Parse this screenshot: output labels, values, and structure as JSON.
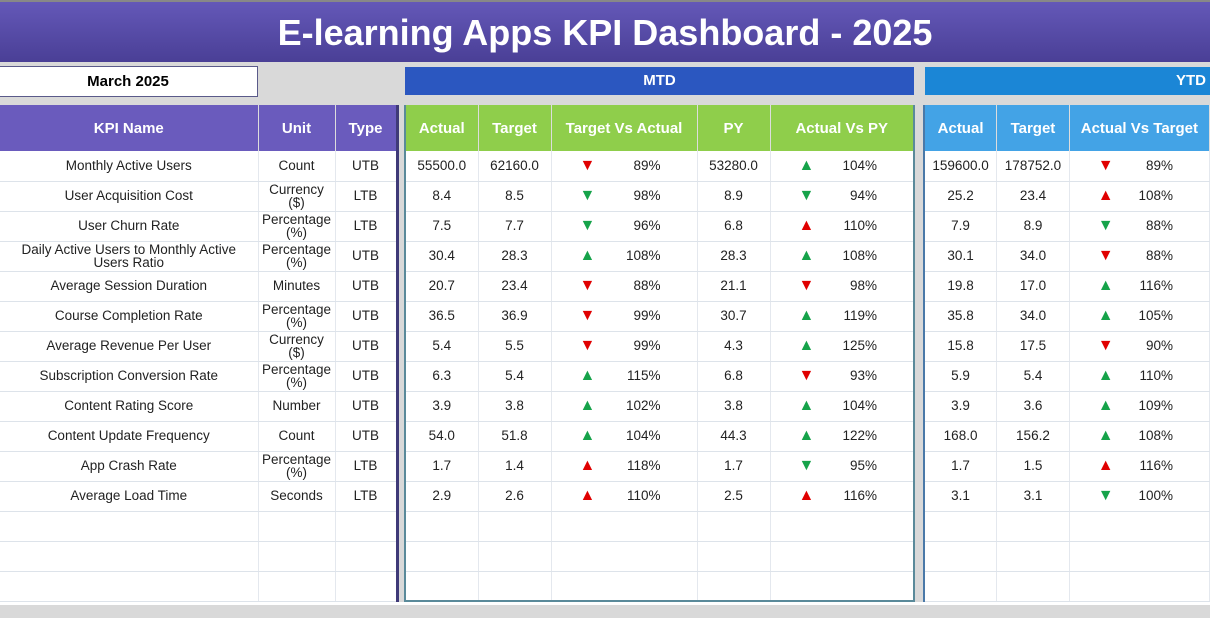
{
  "title": "E-learning Apps KPI Dashboard - 2025",
  "month": "March 2025",
  "sections": {
    "mtd": "MTD",
    "ytd": "YTD"
  },
  "headers": {
    "left": [
      "KPI Name",
      "Unit",
      "Type"
    ],
    "mtd": [
      "Actual",
      "Target",
      "Target Vs Actual",
      "PY",
      "Actual Vs PY"
    ],
    "ytd": [
      "Actual",
      "Target",
      "Actual Vs Target"
    ]
  },
  "colors": {
    "up_good": "#16a34a",
    "bad": "#e00000"
  },
  "rows": [
    {
      "kpi": "Monthly Active Users",
      "unit": "Count",
      "type": "UTB",
      "mtd_actual": "55500.0",
      "mtd_target": "62160.0",
      "tva": {
        "dir": "down",
        "color": "red",
        "pct": "89%"
      },
      "py": "53280.0",
      "avpy": {
        "dir": "up",
        "color": "green",
        "pct": "104%"
      },
      "ytd_actual": "159600.0",
      "ytd_target": "178752.0",
      "avt": {
        "dir": "down",
        "color": "red",
        "pct": "89%"
      }
    },
    {
      "kpi": "User Acquisition Cost",
      "unit": "Currency ($)",
      "type": "LTB",
      "mtd_actual": "8.4",
      "mtd_target": "8.5",
      "tva": {
        "dir": "down",
        "color": "green",
        "pct": "98%"
      },
      "py": "8.9",
      "avpy": {
        "dir": "down",
        "color": "green",
        "pct": "94%"
      },
      "ytd_actual": "25.2",
      "ytd_target": "23.4",
      "avt": {
        "dir": "up",
        "color": "red",
        "pct": "108%"
      }
    },
    {
      "kpi": "User Churn Rate",
      "unit": "Percentage (%)",
      "type": "LTB",
      "mtd_actual": "7.5",
      "mtd_target": "7.7",
      "tva": {
        "dir": "down",
        "color": "green",
        "pct": "96%"
      },
      "py": "6.8",
      "avpy": {
        "dir": "up",
        "color": "red",
        "pct": "110%"
      },
      "ytd_actual": "7.9",
      "ytd_target": "8.9",
      "avt": {
        "dir": "down",
        "color": "green",
        "pct": "88%"
      }
    },
    {
      "kpi": "Daily Active Users to Monthly Active Users Ratio",
      "unit": "Percentage (%)",
      "type": "UTB",
      "mtd_actual": "30.4",
      "mtd_target": "28.3",
      "tva": {
        "dir": "up",
        "color": "green",
        "pct": "108%"
      },
      "py": "28.3",
      "avpy": {
        "dir": "up",
        "color": "green",
        "pct": "108%"
      },
      "ytd_actual": "30.1",
      "ytd_target": "34.0",
      "avt": {
        "dir": "down",
        "color": "red",
        "pct": "88%"
      }
    },
    {
      "kpi": "Average Session Duration",
      "unit": "Minutes",
      "type": "UTB",
      "mtd_actual": "20.7",
      "mtd_target": "23.4",
      "tva": {
        "dir": "down",
        "color": "red",
        "pct": "88%"
      },
      "py": "21.1",
      "avpy": {
        "dir": "down",
        "color": "red",
        "pct": "98%"
      },
      "ytd_actual": "19.8",
      "ytd_target": "17.0",
      "avt": {
        "dir": "up",
        "color": "green",
        "pct": "116%"
      }
    },
    {
      "kpi": "Course Completion Rate",
      "unit": "Percentage (%)",
      "type": "UTB",
      "mtd_actual": "36.5",
      "mtd_target": "36.9",
      "tva": {
        "dir": "down",
        "color": "red",
        "pct": "99%"
      },
      "py": "30.7",
      "avpy": {
        "dir": "up",
        "color": "green",
        "pct": "119%"
      },
      "ytd_actual": "35.8",
      "ytd_target": "34.0",
      "avt": {
        "dir": "up",
        "color": "green",
        "pct": "105%"
      }
    },
    {
      "kpi": "Average Revenue Per User",
      "unit": "Currency ($)",
      "type": "UTB",
      "mtd_actual": "5.4",
      "mtd_target": "5.5",
      "tva": {
        "dir": "down",
        "color": "red",
        "pct": "99%"
      },
      "py": "4.3",
      "avpy": {
        "dir": "up",
        "color": "green",
        "pct": "125%"
      },
      "ytd_actual": "15.8",
      "ytd_target": "17.5",
      "avt": {
        "dir": "down",
        "color": "red",
        "pct": "90%"
      }
    },
    {
      "kpi": "Subscription Conversion Rate",
      "unit": "Percentage (%)",
      "type": "UTB",
      "mtd_actual": "6.3",
      "mtd_target": "5.4",
      "tva": {
        "dir": "up",
        "color": "green",
        "pct": "115%"
      },
      "py": "6.8",
      "avpy": {
        "dir": "down",
        "color": "red",
        "pct": "93%"
      },
      "ytd_actual": "5.9",
      "ytd_target": "5.4",
      "avt": {
        "dir": "up",
        "color": "green",
        "pct": "110%"
      }
    },
    {
      "kpi": "Content Rating Score",
      "unit": "Number",
      "type": "UTB",
      "mtd_actual": "3.9",
      "mtd_target": "3.8",
      "tva": {
        "dir": "up",
        "color": "green",
        "pct": "102%"
      },
      "py": "3.8",
      "avpy": {
        "dir": "up",
        "color": "green",
        "pct": "104%"
      },
      "ytd_actual": "3.9",
      "ytd_target": "3.6",
      "avt": {
        "dir": "up",
        "color": "green",
        "pct": "109%"
      }
    },
    {
      "kpi": "Content Update Frequency",
      "unit": "Count",
      "type": "UTB",
      "mtd_actual": "54.0",
      "mtd_target": "51.8",
      "tva": {
        "dir": "up",
        "color": "green",
        "pct": "104%"
      },
      "py": "44.3",
      "avpy": {
        "dir": "up",
        "color": "green",
        "pct": "122%"
      },
      "ytd_actual": "168.0",
      "ytd_target": "156.2",
      "avt": {
        "dir": "up",
        "color": "green",
        "pct": "108%"
      }
    },
    {
      "kpi": "App Crash Rate",
      "unit": "Percentage (%)",
      "type": "LTB",
      "mtd_actual": "1.7",
      "mtd_target": "1.4",
      "tva": {
        "dir": "up",
        "color": "red",
        "pct": "118%"
      },
      "py": "1.7",
      "avpy": {
        "dir": "down",
        "color": "green",
        "pct": "95%"
      },
      "ytd_actual": "1.7",
      "ytd_target": "1.5",
      "avt": {
        "dir": "up",
        "color": "red",
        "pct": "116%"
      }
    },
    {
      "kpi": "Average Load Time",
      "unit": "Seconds",
      "type": "LTB",
      "mtd_actual": "2.9",
      "mtd_target": "2.6",
      "tva": {
        "dir": "up",
        "color": "red",
        "pct": "110%"
      },
      "py": "2.5",
      "avpy": {
        "dir": "up",
        "color": "red",
        "pct": "116%"
      },
      "ytd_actual": "3.1",
      "ytd_target": "3.1",
      "avt": {
        "dir": "down",
        "color": "green",
        "pct": "100%"
      }
    }
  ],
  "empty_rows": 3
}
